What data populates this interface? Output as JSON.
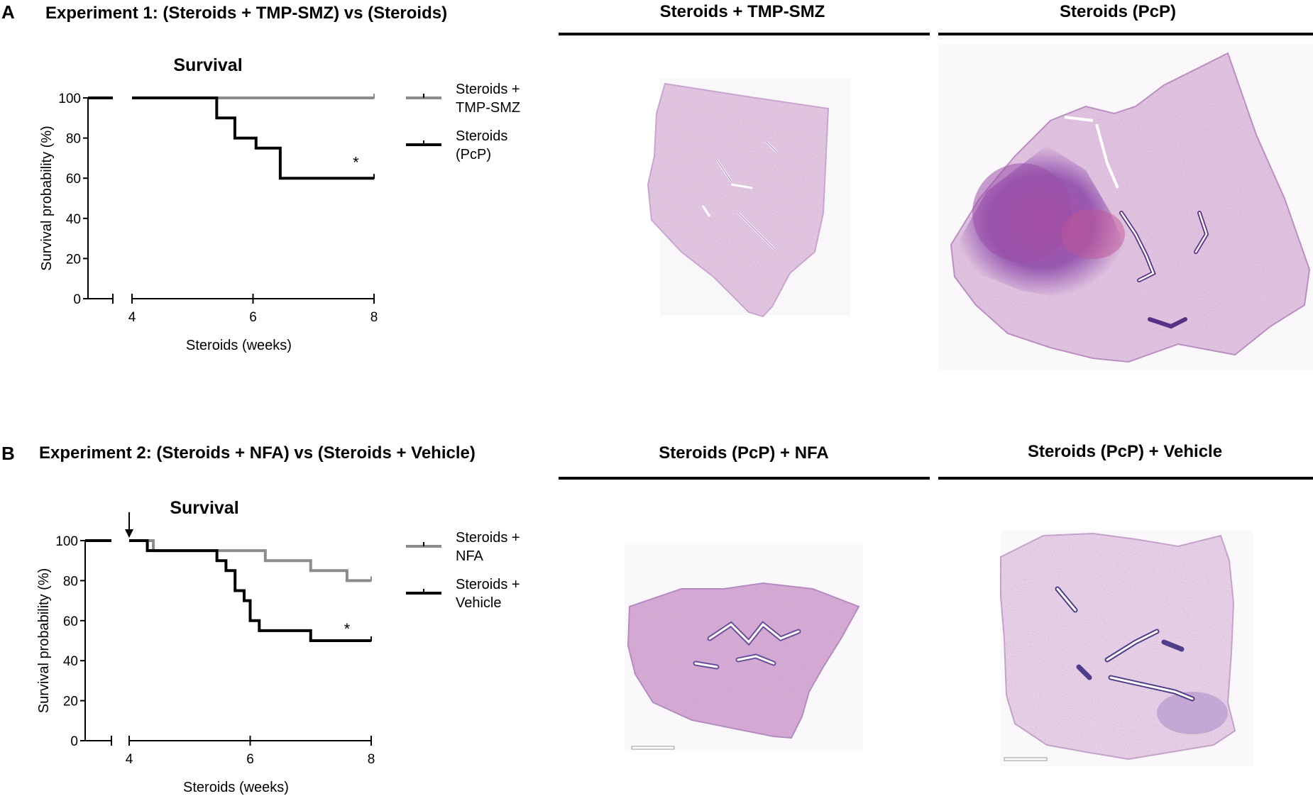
{
  "panel_a": {
    "letter": "A",
    "title": "Experiment 1: (Steroids + TMP-SMZ) vs (Steroids)",
    "image_titles": [
      "Steroids + TMP-SMZ",
      "Steroids (PcP)"
    ]
  },
  "panel_b": {
    "letter": "B",
    "title": "Experiment 2: (Steroids + NFA) vs (Steroids + Vehicle)",
    "image_titles": [
      "Steroids (PcP) + NFA",
      "Steroids (PcP) + Vehicle"
    ]
  },
  "chart_data": [
    {
      "type": "line",
      "step": true,
      "title": "Survival",
      "xlabel": "Steroids (weeks)",
      "ylabel": "Survival probability (%)",
      "xlim": [
        4,
        8
      ],
      "ylim": [
        0,
        100
      ],
      "xticks": [
        4,
        6,
        8
      ],
      "yticks": [
        0,
        20,
        40,
        60,
        80,
        100
      ],
      "pre_break_value": 100,
      "legend": "right",
      "series": [
        {
          "name": "Steroids + TMP-SMZ",
          "color": "#8c8c8c",
          "x": [
            4,
            8
          ],
          "y": [
            100,
            100
          ]
        },
        {
          "name": "Steroids (PcP)",
          "color": "#000000",
          "x": [
            4,
            5.4,
            5.7,
            6.05,
            6.45,
            8
          ],
          "y": [
            100,
            90,
            80,
            75,
            60,
            60
          ]
        }
      ],
      "annotations": [
        {
          "text": "*",
          "x": 7.7,
          "y": 68
        }
      ]
    },
    {
      "type": "line",
      "step": true,
      "title": "Survival",
      "xlabel": "Steroids (weeks)",
      "ylabel": "Survival probability (%)",
      "xlim": [
        4,
        8
      ],
      "ylim": [
        0,
        100
      ],
      "xticks": [
        4,
        6,
        8
      ],
      "yticks": [
        0,
        20,
        40,
        60,
        80,
        100
      ],
      "pre_break_value": 100,
      "legend": "right",
      "arrow_at_x": 4,
      "series": [
        {
          "name": "Steroids + NFA",
          "color": "#8c8c8c",
          "x": [
            4,
            4.4,
            6.25,
            7.0,
            7.6,
            8
          ],
          "y": [
            100,
            95,
            90,
            85,
            80,
            80
          ]
        },
        {
          "name": "Steroids + Vehicle",
          "color": "#000000",
          "x": [
            4,
            4.3,
            5.45,
            5.6,
            5.75,
            5.9,
            6.0,
            6.15,
            7.0,
            8
          ],
          "y": [
            100,
            95,
            90,
            85,
            75,
            70,
            60,
            55,
            50,
            50
          ]
        }
      ],
      "annotations": [
        {
          "text": "*",
          "x": 7.6,
          "y": 56
        }
      ]
    }
  ]
}
